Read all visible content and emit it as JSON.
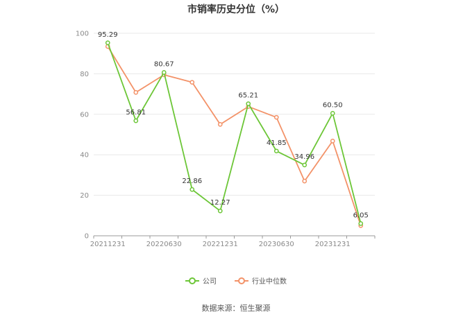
{
  "title": "市销率历史分位（%）",
  "source": "数据来源：恒生聚源",
  "colors": {
    "company": "#6cc637",
    "industry": "#f39268",
    "grid": "#e8e8e8",
    "axis": "#999999"
  },
  "chart_data": {
    "type": "line",
    "title": "市销率历史分位（%）",
    "xlabel": "",
    "ylabel": "",
    "ylim": [
      0,
      100
    ],
    "y_ticks": [
      0,
      20,
      40,
      60,
      80,
      100
    ],
    "grid": true,
    "legend_position": "bottom",
    "categories": [
      "20211231",
      "20220331",
      "20220630",
      "20220930",
      "20221231",
      "20230331",
      "20230630",
      "20230930",
      "20231231",
      "20240331"
    ],
    "x_tick_labels": [
      "20211231",
      "",
      "20220630",
      "",
      "20221231",
      "",
      "20230630",
      "",
      "20231231",
      ""
    ],
    "series": [
      {
        "name": "公司",
        "color": "#6cc637",
        "values": [
          95.29,
          56.81,
          80.67,
          22.86,
          12.27,
          65.21,
          41.85,
          34.96,
          60.5,
          6.05
        ],
        "labels": [
          "95.29",
          "56.81",
          "80.67",
          "22.86",
          "12.27",
          "65.21",
          "41.85",
          "34.96",
          "60.50",
          "6.05"
        ]
      },
      {
        "name": "行业中位数",
        "color": "#f39268",
        "values": [
          93.5,
          70.8,
          79.5,
          75.8,
          55.0,
          63.8,
          58.5,
          27.0,
          46.8,
          5.0
        ]
      }
    ]
  }
}
